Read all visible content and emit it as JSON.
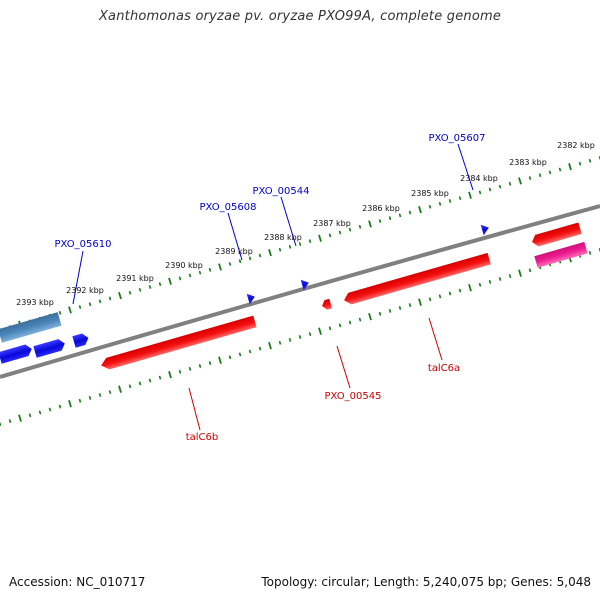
{
  "title": "Xanthomonas oryzae pv. oryzae PXO99A, complete genome",
  "footer": {
    "accession": "Accession: NC_010717",
    "stats": "Topology: circular; Length: 5,240,075 bp; Genes: 5,048"
  },
  "colors": {
    "backbone": "#8a8a8a",
    "ticks": "#1a7a1a",
    "gene_blue": "#1010e0",
    "gene_steel": "#4682b4",
    "gene_red": "#ee1111",
    "gene_pink": "#e0108a",
    "label_blue": "#0000cc",
    "label_red": "#cc0000"
  },
  "scale": {
    "labels": [
      "2393 kbp",
      "2392 kbp",
      "2391 kbp",
      "2390 kbp",
      "2389 kbp",
      "2388 kbp",
      "2387 kbp",
      "2386 kbp",
      "2385 kbp",
      "2384 kbp",
      "2383 kbp",
      "2382 kbp"
    ]
  },
  "genes": [
    {
      "name": "steel-block",
      "color": "steel",
      "strand": "outer"
    },
    {
      "name": "blue-arrow-1",
      "color": "blue",
      "strand": "inner"
    },
    {
      "name": "blue-arrow-2",
      "color": "blue",
      "strand": "inner"
    },
    {
      "name": "PXO_05610",
      "color": "blue",
      "strand": "inner"
    },
    {
      "name": "PXO_05608",
      "color": "blue",
      "strand": "inner"
    },
    {
      "name": "PXO_00544",
      "color": "blue",
      "strand": "inner"
    },
    {
      "name": "PXO_05607",
      "color": "blue",
      "strand": "inner"
    },
    {
      "name": "talC6b",
      "color": "red",
      "strand": "inner"
    },
    {
      "name": "PXO_00545",
      "color": "red",
      "strand": "inner"
    },
    {
      "name": "talC6a",
      "color": "red",
      "strand": "inner"
    },
    {
      "name": "red-right",
      "color": "red",
      "strand": "outer"
    },
    {
      "name": "pink-right",
      "color": "pink",
      "strand": "outer"
    }
  ],
  "gene_labels": {
    "PXO_05610": "PXO_05610",
    "PXO_05608": "PXO_05608",
    "PXO_00544": "PXO_00544",
    "PXO_05607": "PXO_05607",
    "talC6b": "talC6b",
    "PXO_00545": "PXO_00545",
    "talC6a": "talC6a"
  }
}
